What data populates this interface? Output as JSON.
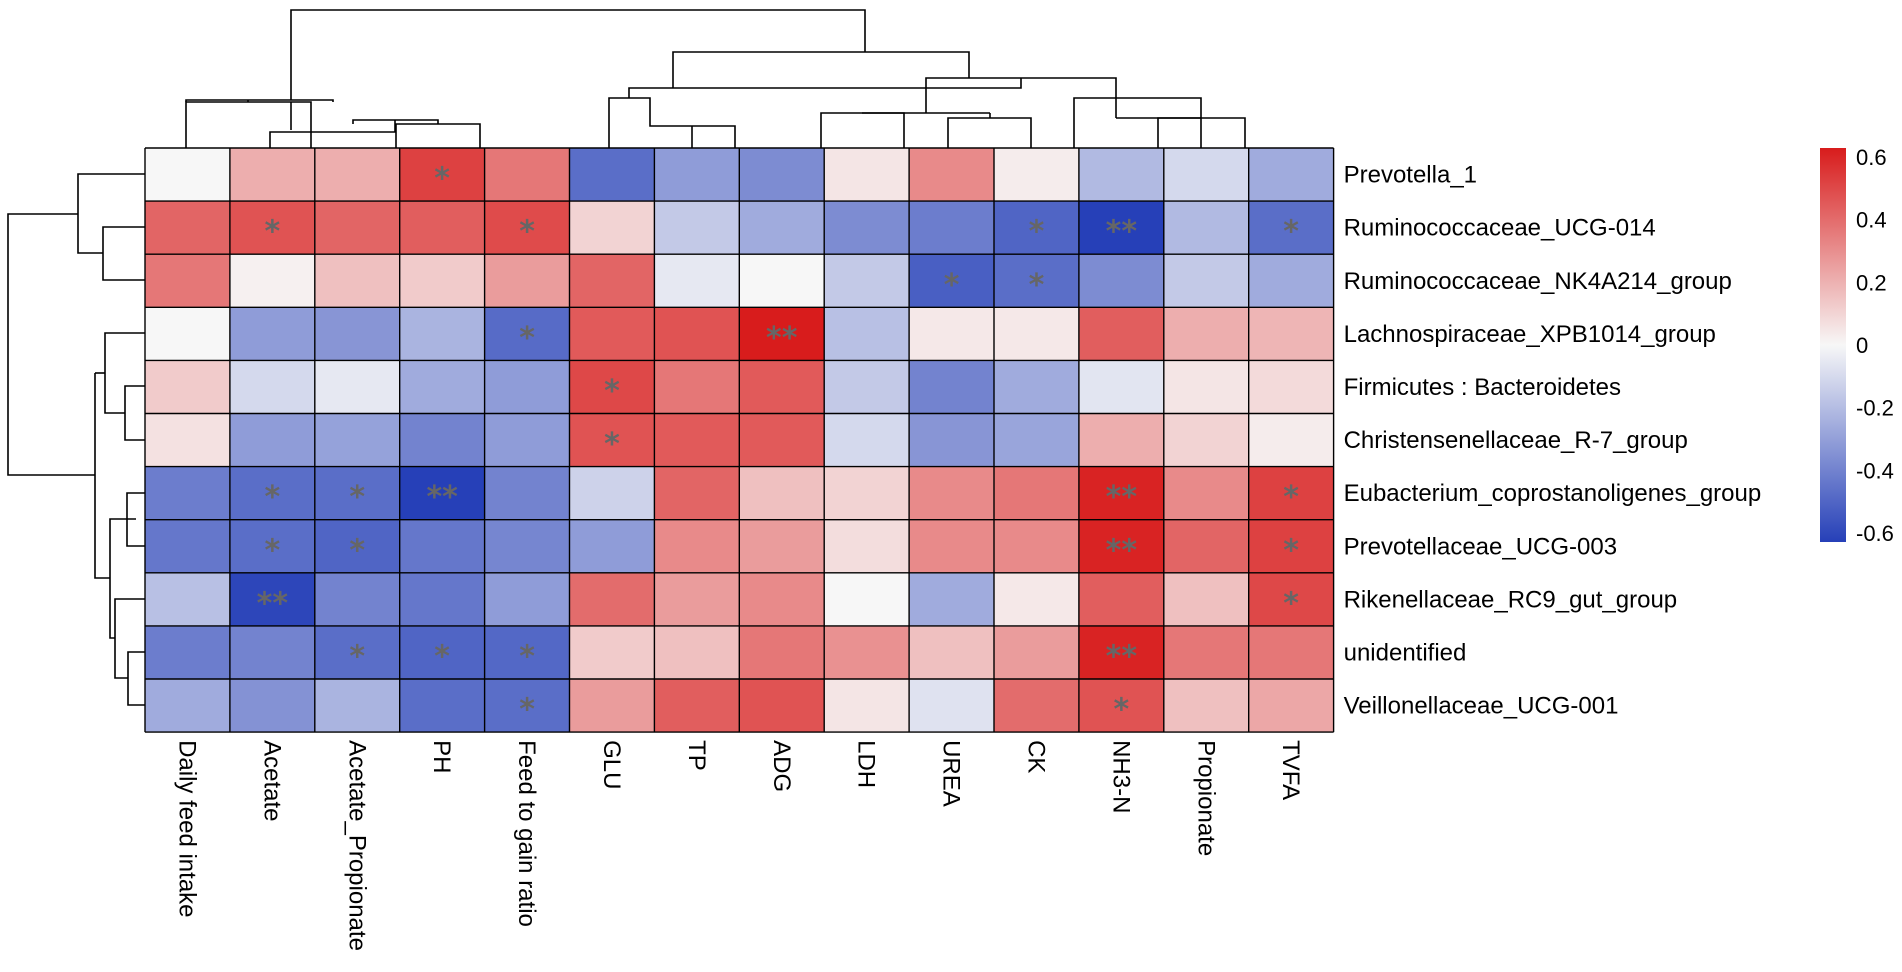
{
  "chart_data": {
    "type": "heatmap",
    "title": "",
    "rows": [
      "Prevotella_1",
      "Ruminococcaceae_UCG-014",
      "Ruminococcaceae_NK4A214_group",
      "Lachnospiraceae_XPB1014_group",
      "Firmicutes : Bacteroidetes",
      "Christensenellaceae_R-7_group",
      "Eubacterium_coprostanoligenes_group",
      "Prevotellaceae_UCG-003",
      "Rikenellaceae_RC9_gut_group",
      "unidentified",
      "Veillonellaceae_UCG-001"
    ],
    "columns": [
      "Daily feed intake",
      "Acetate",
      "Acetate_Propionate",
      "PH",
      "Feed to gain ratio",
      "GLU",
      "TP",
      "ADG",
      "LDH",
      "UREA",
      "CK",
      "NH3-N",
      "Propionate",
      "TVFA"
    ],
    "values": [
      [
        0.0,
        0.2,
        0.2,
        0.5,
        0.35,
        -0.45,
        -0.3,
        -0.35,
        0.05,
        0.3,
        0.03,
        -0.2,
        -0.1,
        -0.25
      ],
      [
        0.4,
        0.45,
        0.4,
        0.42,
        0.47,
        0.1,
        -0.15,
        -0.25,
        -0.35,
        -0.4,
        -0.48,
        -0.62,
        -0.2,
        -0.45
      ],
      [
        0.35,
        0.02,
        0.15,
        0.12,
        0.25,
        0.4,
        -0.05,
        0.0,
        -0.15,
        -0.5,
        -0.45,
        -0.35,
        -0.15,
        -0.25
      ],
      [
        0.0,
        -0.3,
        -0.32,
        -0.22,
        -0.46,
        0.43,
        0.45,
        0.6,
        -0.18,
        0.04,
        0.04,
        0.42,
        0.2,
        0.18
      ],
      [
        0.12,
        -0.1,
        -0.05,
        -0.25,
        -0.3,
        0.48,
        0.35,
        0.43,
        -0.15,
        -0.38,
        -0.25,
        -0.06,
        0.05,
        0.08
      ],
      [
        0.06,
        -0.3,
        -0.28,
        -0.38,
        -0.3,
        0.45,
        0.43,
        0.43,
        -0.1,
        -0.32,
        -0.27,
        0.2,
        0.1,
        0.03
      ],
      [
        -0.4,
        -0.45,
        -0.45,
        -0.6,
        -0.38,
        -0.12,
        0.4,
        0.15,
        0.1,
        0.3,
        0.35,
        0.58,
        0.3,
        0.5
      ],
      [
        -0.42,
        -0.45,
        -0.48,
        -0.42,
        -0.37,
        -0.3,
        0.3,
        0.25,
        0.07,
        0.3,
        0.3,
        0.58,
        0.4,
        0.5
      ],
      [
        -0.18,
        -0.58,
        -0.38,
        -0.42,
        -0.3,
        0.38,
        0.25,
        0.3,
        0.0,
        -0.25,
        0.04,
        0.42,
        0.15,
        0.48
      ],
      [
        -0.4,
        -0.38,
        -0.45,
        -0.48,
        -0.47,
        0.12,
        0.15,
        0.35,
        0.28,
        0.15,
        0.25,
        0.58,
        0.35,
        0.35
      ],
      [
        -0.25,
        -0.33,
        -0.22,
        -0.45,
        -0.45,
        0.25,
        0.42,
        0.45,
        0.05,
        -0.07,
        0.38,
        0.45,
        0.15,
        0.22
      ]
    ],
    "significance": [
      [
        "",
        "",
        "",
        "*",
        "",
        "",
        "",
        "",
        "",
        "",
        "",
        "",
        "",
        ""
      ],
      [
        "",
        "*",
        "",
        "",
        "*",
        "",
        "",
        "",
        "",
        "",
        "*",
        "**",
        "",
        "*"
      ],
      [
        "",
        "",
        "",
        "",
        "",
        "",
        "",
        "",
        "",
        "*",
        "*",
        "",
        "",
        ""
      ],
      [
        "",
        "",
        "",
        "",
        "*",
        "",
        "",
        "**",
        "",
        "",
        "",
        "",
        "",
        ""
      ],
      [
        "",
        "",
        "",
        "",
        "",
        "*",
        "",
        "",
        "",
        "",
        "",
        "",
        "",
        ""
      ],
      [
        "",
        "",
        "",
        "",
        "",
        "*",
        "",
        "",
        "",
        "",
        "",
        "",
        "",
        ""
      ],
      [
        "",
        "*",
        "*",
        "**",
        "",
        "",
        "",
        "",
        "",
        "",
        "",
        "**",
        "",
        "*"
      ],
      [
        "",
        "*",
        "*",
        "",
        "",
        "",
        "",
        "",
        "",
        "",
        "",
        "**",
        "",
        "*"
      ],
      [
        "",
        "**",
        "",
        "",
        "",
        "",
        "",
        "",
        "",
        "",
        "",
        "",
        "",
        "*"
      ],
      [
        "",
        "",
        "*",
        "*",
        "*",
        "",
        "",
        "",
        "",
        "",
        "",
        "**",
        "",
        ""
      ],
      [
        "",
        "",
        "",
        "",
        "*",
        "",
        "",
        "",
        "",
        "",
        "",
        "*",
        "",
        ""
      ]
    ],
    "color_scale": {
      "range": [
        -0.6,
        0.6
      ],
      "low_color": "#2640b8",
      "mid_color": "#f7f7f7",
      "high_color": "#d81c1c",
      "ticks": [
        0.6,
        0.4,
        0.2,
        0,
        -0.2,
        -0.4,
        -0.6
      ],
      "tick_labels": [
        "0.6",
        "0.4",
        "0.2",
        "0",
        "-0.2",
        "-0.4",
        "-0.6"
      ]
    }
  }
}
